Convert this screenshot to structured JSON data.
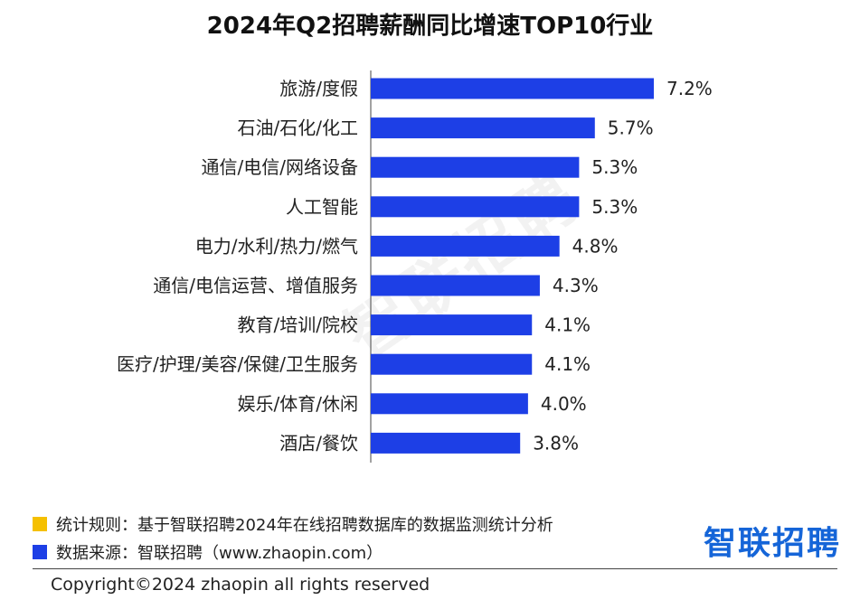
{
  "chart_data": {
    "type": "bar",
    "orientation": "horizontal",
    "title": "2024年Q2招聘薪酬同比增速TOP10行业",
    "categories": [
      "旅游/度假",
      "石油/石化/化工",
      "通信/电信/网络设备",
      "人工智能",
      "电力/水利/热力/燃气",
      "通信/电信运营、增值服务",
      "教育/培训/院校",
      "医疗/护理/美容/保健/卫生服务",
      "娱乐/体育/休闲",
      "酒店/餐饮"
    ],
    "values": [
      7.2,
      5.7,
      5.3,
      5.3,
      4.8,
      4.3,
      4.1,
      4.1,
      4.0,
      3.8
    ],
    "value_labels": [
      "7.2%",
      "5.7%",
      "5.3%",
      "5.3%",
      "4.8%",
      "4.3%",
      "4.1%",
      "4.1%",
      "4.0%",
      "3.8%"
    ],
    "unit": "%",
    "bar_color": "#1d3fe6",
    "xlim": [
      0,
      7.2
    ],
    "grid": false,
    "legend": "none"
  },
  "watermark": "智联招聘",
  "footer": {
    "rule_label": "统计规则：基于智联招聘2024年在线招聘数据库的数据监测统计分析",
    "source_label": "数据来源：智联招聘（www.zhaopin.com）",
    "rule_color": "#f5c000",
    "source_color": "#1d3fe6"
  },
  "logo": "智联招聘",
  "copyright": "Copyright©2024 zhaopin all rights reserved"
}
